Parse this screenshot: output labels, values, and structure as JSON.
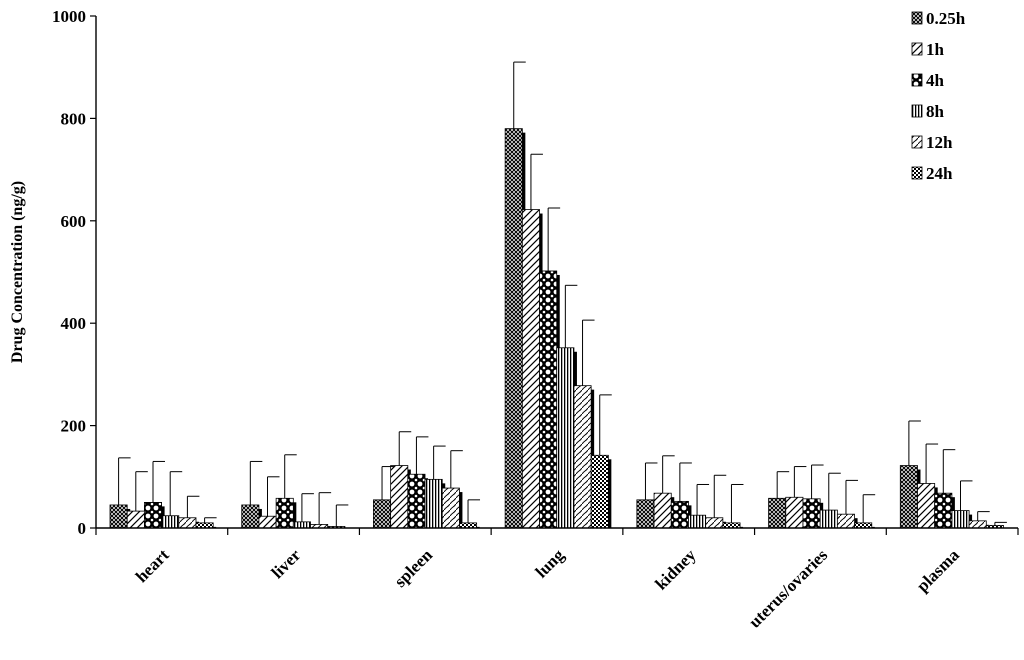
{
  "chart_data": {
    "type": "bar",
    "title": "",
    "xlabel": "",
    "ylabel": "Drug Concentration (ng/g)",
    "ylim": [
      0,
      1000
    ],
    "yticks": [
      0,
      200,
      400,
      600,
      800,
      1000
    ],
    "grid": false,
    "legend_position": "top-right",
    "categories": [
      "heart",
      "liver",
      "spleen",
      "lung",
      "kidney",
      "uterus/ovaries",
      "plasma"
    ],
    "series": [
      {
        "name": "0.25h",
        "values": [
          45,
          45,
          55,
          780,
          55,
          58,
          122
        ],
        "errors": [
          92,
          85,
          65,
          130,
          72,
          52,
          87
        ],
        "pattern": "crosshatch"
      },
      {
        "name": "1h",
        "values": [
          33,
          23,
          122,
          622,
          68,
          60,
          87
        ],
        "errors": [
          77,
          77,
          66,
          108,
          73,
          60,
          77
        ],
        "pattern": "diagonal"
      },
      {
        "name": "4h",
        "values": [
          50,
          58,
          105,
          502,
          52,
          57,
          68
        ],
        "errors": [
          80,
          85,
          73,
          123,
          75,
          66,
          85
        ],
        "pattern": "circles"
      },
      {
        "name": "8h",
        "values": [
          24,
          12,
          95,
          352,
          25,
          35,
          34
        ],
        "errors": [
          86,
          55,
          65,
          122,
          60,
          72,
          58
        ],
        "pattern": "vertical"
      },
      {
        "name": "12h",
        "values": [
          20,
          7,
          78,
          278,
          20,
          27,
          14
        ],
        "errors": [
          42,
          62,
          73,
          128,
          83,
          66,
          18
        ],
        "pattern": "wave"
      },
      {
        "name": "24h",
        "values": [
          10,
          3,
          10,
          142,
          10,
          10,
          5
        ],
        "errors": [
          10,
          42,
          45,
          118,
          75,
          55,
          6
        ],
        "pattern": "checker"
      }
    ]
  }
}
